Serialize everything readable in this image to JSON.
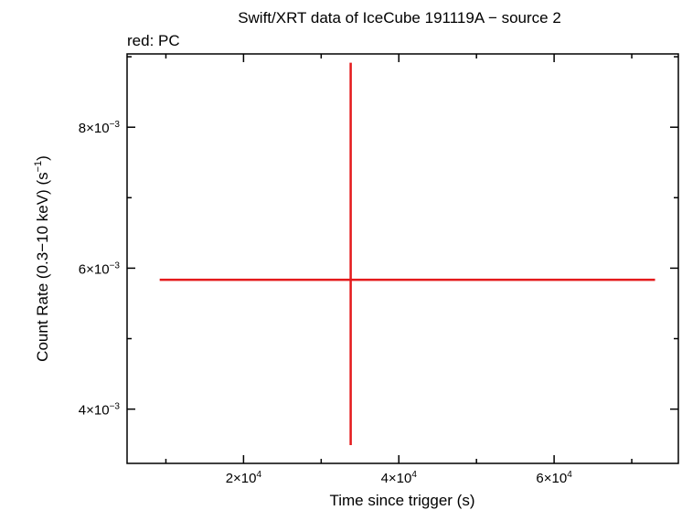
{
  "chart_data": {
    "type": "scatter",
    "title": "Swift/XRT data of IceCube 191119A − source 2",
    "subtitle": "red: PC",
    "xlabel": "Time since trigger (s)",
    "ylabel_parts": {
      "prefix": "Count Rate (0.3−10 keV) (s",
      "exp": "−1",
      "suffix": ")"
    },
    "xlim": [
      5000,
      76000
    ],
    "ylim": [
      0.00323,
      0.00904
    ],
    "x_ticks": [
      {
        "value": 20000,
        "mantissa": "2×10",
        "exp": "4"
      },
      {
        "value": 40000,
        "mantissa": "4×10",
        "exp": "4"
      },
      {
        "value": 60000,
        "mantissa": "6×10",
        "exp": "4"
      }
    ],
    "y_ticks": [
      {
        "value": 0.004,
        "mantissa": "4×10",
        "exp": "−3"
      },
      {
        "value": 0.006,
        "mantissa": "6×10",
        "exp": "−3"
      },
      {
        "value": 0.008,
        "mantissa": "8×10",
        "exp": "−3"
      }
    ],
    "x_minor_step": 10000,
    "y_minor_step": 0.001,
    "series": [
      {
        "color": "#e41a1c",
        "points": [
          {
            "x": 33800,
            "y": 0.005835,
            "xerr_minus": 24600,
            "xerr_plus": 39200,
            "yerr_minus": 0.002345,
            "yerr_plus": 0.00308
          }
        ]
      }
    ]
  }
}
